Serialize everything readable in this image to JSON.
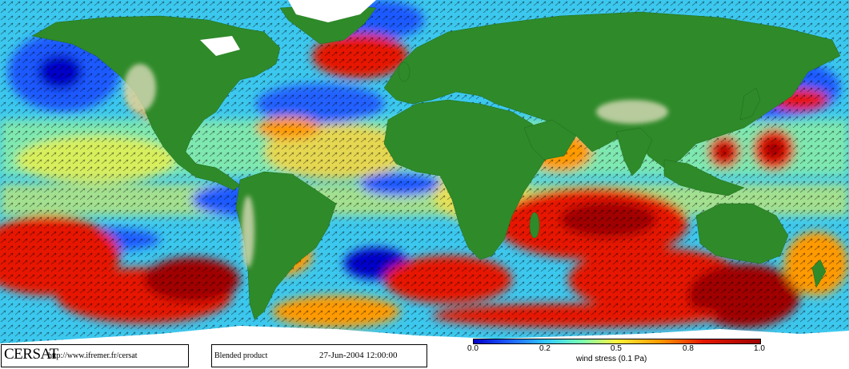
{
  "map": {
    "projection": "equirectangular global map",
    "variable": "ocean surface wind stress with direction arrows",
    "colors": {
      "ocean_scale": [
        "#0000c8",
        "#1e5aff",
        "#2ec8ff",
        "#7dffb0",
        "#fff23a",
        "#ff9a00",
        "#e61800",
        "#a00000"
      ],
      "land": "#2f8a2a",
      "highland": "#cfd7b0",
      "ice": "#ffffff",
      "arrow": "#000000"
    }
  },
  "footer": {
    "logo": "CERSAT",
    "url": "http://www.ifremer.fr/cersat",
    "product": "Blended product",
    "datetime": "27-Jun-2004 12:00:00"
  },
  "colorbar": {
    "ticks": [
      "0.0",
      "0.2",
      "0.5",
      "0.8",
      "1.0"
    ],
    "label": "wind stress (0.1 Pa)",
    "range": [
      0.0,
      1.0
    ]
  }
}
